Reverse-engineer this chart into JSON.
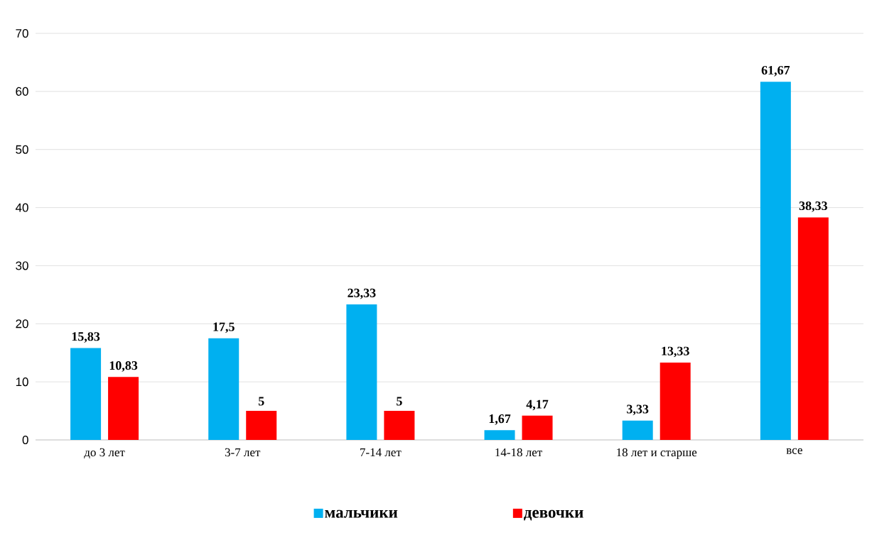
{
  "chart_data": {
    "type": "bar",
    "categories": [
      "до 3 лет",
      "3-7 лет",
      "7-14 лет",
      "14-18 лет",
      "18 лет и старше",
      "все"
    ],
    "series": [
      {
        "name": "мальчики",
        "color": "#00b0f0",
        "values": [
          15.83,
          17.5,
          23.33,
          1.67,
          3.33,
          61.67
        ],
        "value_labels": [
          "15,83",
          "17,5",
          "23,33",
          "1,67",
          "3,33",
          "61,67"
        ]
      },
      {
        "name": "девочки",
        "color": "#ff0000",
        "values": [
          10.83,
          5,
          5,
          4.17,
          13.33,
          38.33
        ],
        "value_labels": [
          "10,83",
          "5",
          "5",
          "4,17",
          "13,33",
          "38,33"
        ]
      }
    ],
    "ylim": [
      0,
      70
    ],
    "yticks": [
      0,
      10,
      20,
      30,
      40,
      50,
      60,
      70
    ],
    "grid": "y",
    "legend": "bottom"
  }
}
